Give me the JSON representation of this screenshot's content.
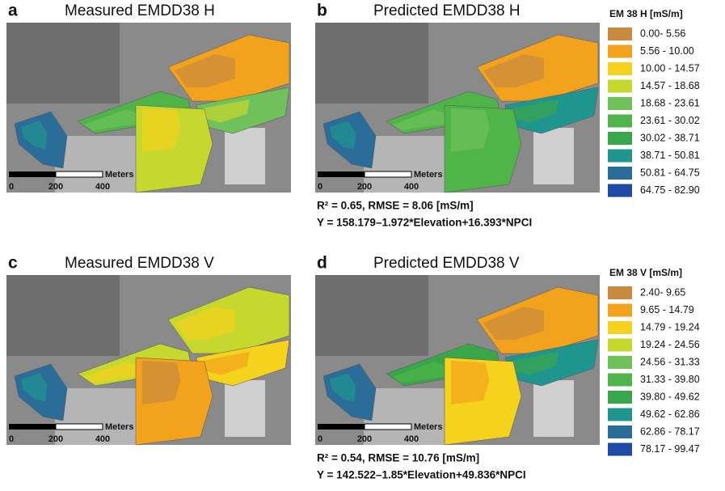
{
  "panels": [
    {
      "letter": "a",
      "title": "Measured EMDD38 H",
      "scale_unit": "Meters",
      "scale_ticks": [
        0,
        200,
        400
      ]
    },
    {
      "letter": "b",
      "title": "Predicted EMDD38 H",
      "scale_unit": "Meters",
      "scale_ticks": [
        0,
        200,
        400
      ],
      "stats": [
        "R² = 0.65, RMSE = 8.06 [mS/m]",
        "Y = 158.179–1.972*Elevation+16.393*NPCI"
      ]
    },
    {
      "letter": "c",
      "title": "Measured EMDD38 V",
      "scale_unit": "Meters",
      "scale_ticks": [
        0,
        200,
        400
      ]
    },
    {
      "letter": "d",
      "title": "Predicted EMDD38 V",
      "scale_unit": "Meters",
      "scale_ticks": [
        0,
        200,
        400
      ],
      "stats": [
        "R² = 0.54, RMSE = 10.76 [mS/m]",
        "Y = 142.522–1.85*Elevation+49.836*NPCI"
      ]
    }
  ],
  "legends": [
    {
      "title": "EM 38 H [mS/m]",
      "items": [
        {
          "label": "0.00- 5.56",
          "color": "#c98a3e"
        },
        {
          "label": "5.56 - 10.00",
          "color": "#f2a21c"
        },
        {
          "label": "10.00 - 14.57",
          "color": "#f5d21c"
        },
        {
          "label": "14.57 - 18.68",
          "color": "#c6d72e"
        },
        {
          "label": "18.68 - 23.61",
          "color": "#6fc25a"
        },
        {
          "label": "23.61 - 30.02",
          "color": "#4fb548"
        },
        {
          "label": "30.02 - 38.71",
          "color": "#3aa64a"
        },
        {
          "label": "38.71 - 50.81",
          "color": "#1f9590"
        },
        {
          "label": "50.81 - 64.75",
          "color": "#2a6d98"
        },
        {
          "label": "64.75 - 82.90",
          "color": "#1f4aa6"
        }
      ]
    },
    {
      "title": "EM 38 V [mS/m]",
      "items": [
        {
          "label": "2.40- 9.65",
          "color": "#c98a3e"
        },
        {
          "label": "9.65 - 14.79",
          "color": "#f2a21c"
        },
        {
          "label": "14.79 - 19.24",
          "color": "#f5d21c"
        },
        {
          "label": "19.24 - 24.56",
          "color": "#c6d72e"
        },
        {
          "label": "24.56 - 31.33",
          "color": "#6fc25a"
        },
        {
          "label": "31.33 - 39.80",
          "color": "#4fb548"
        },
        {
          "label": "39.80 - 49.62",
          "color": "#3aa64a"
        },
        {
          "label": "49.62 - 62.86",
          "color": "#1f9590"
        },
        {
          "label": "62.86 - 78.17",
          "color": "#2a6d98"
        },
        {
          "label": "78.17 - 99.47",
          "color": "#1f4aa6"
        }
      ]
    }
  ]
}
